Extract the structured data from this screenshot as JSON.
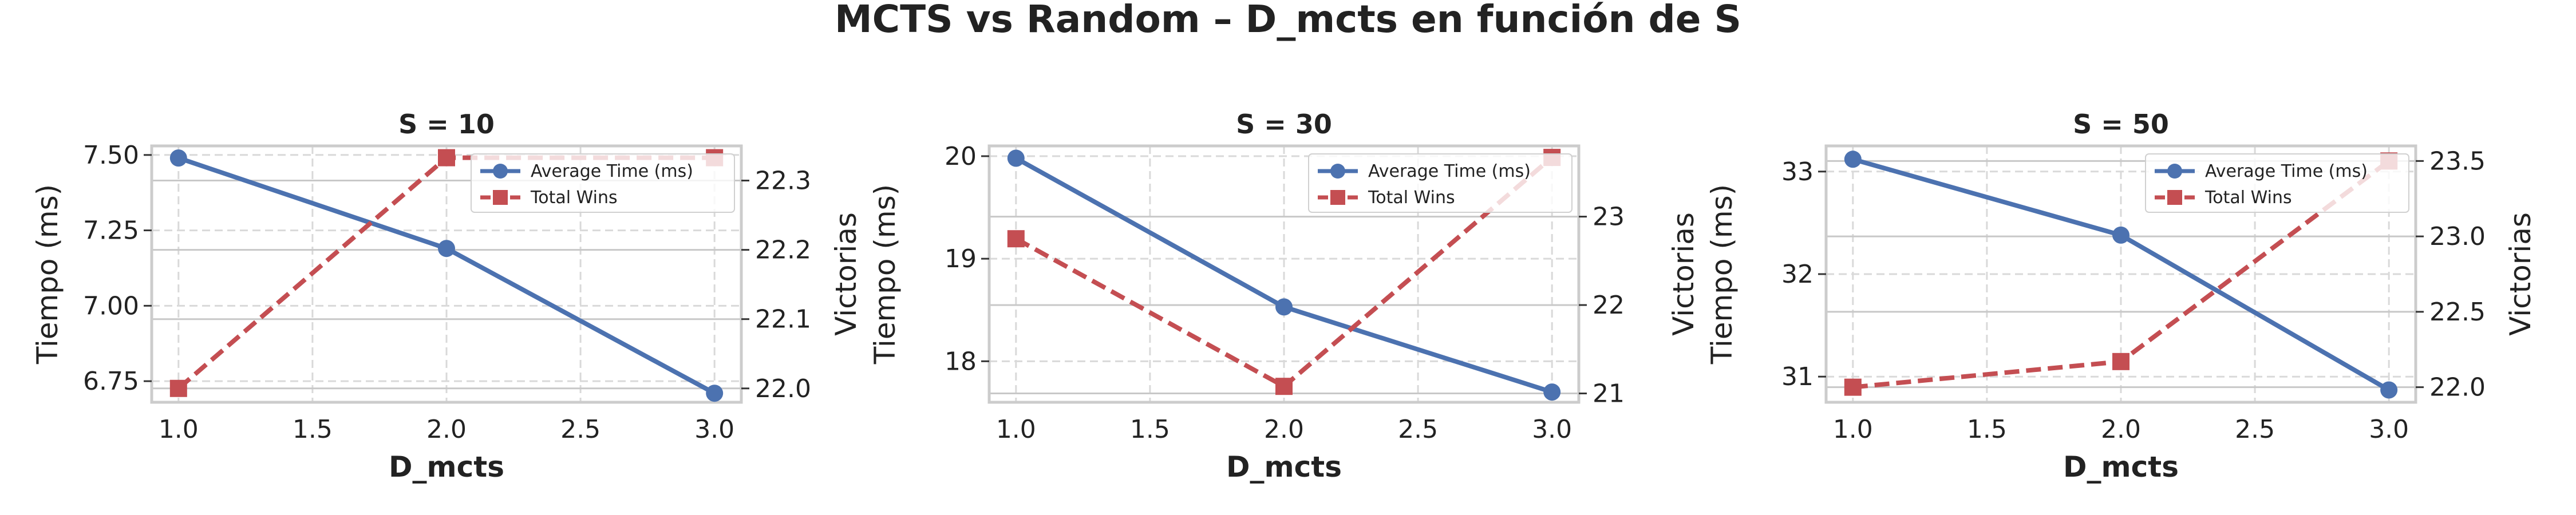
{
  "title": "MCTS vs Random – D_mcts en función de S",
  "chart_data": [
    {
      "type": "line",
      "title": "S = 10",
      "xlabel": "D_mcts",
      "ylabel": "Tiempo (ms)",
      "y2label": "Victorias",
      "x": [
        1.0,
        2.0,
        3.0
      ],
      "xlim": [
        0.9,
        3.1
      ],
      "xticks": [
        1.0,
        1.5,
        2.0,
        2.5,
        3.0
      ],
      "ylim": [
        6.68,
        7.53
      ],
      "yticks": [
        6.75,
        7.0,
        7.25,
        7.5
      ],
      "y2lim": [
        21.98,
        22.35
      ],
      "y2ticks": [
        22.0,
        22.1,
        22.2,
        22.3
      ],
      "series": [
        {
          "name": "Average Time (ms)",
          "axis": "left",
          "values": [
            7.49,
            7.19,
            6.71
          ],
          "color": "#4c72b0",
          "marker": "circle",
          "linestyle": "solid"
        },
        {
          "name": "Total Wins",
          "axis": "right",
          "values": [
            22.0,
            22.333,
            22.333
          ],
          "color": "#c44e52",
          "marker": "square",
          "linestyle": "dashed"
        }
      ],
      "legend": "top-right",
      "grid": true
    },
    {
      "type": "line",
      "title": "S = 30",
      "xlabel": "D_mcts",
      "ylabel": "Tiempo (ms)",
      "y2label": "Victorias",
      "x": [
        1.0,
        2.0,
        3.0
      ],
      "xlim": [
        0.9,
        3.1
      ],
      "xticks": [
        1.0,
        1.5,
        2.0,
        2.5,
        3.0
      ],
      "ylim": [
        17.6,
        20.1
      ],
      "yticks": [
        18,
        19,
        20
      ],
      "y2lim": [
        20.9,
        23.8
      ],
      "y2ticks": [
        21,
        22,
        23
      ],
      "series": [
        {
          "name": "Average Time (ms)",
          "axis": "left",
          "values": [
            19.98,
            18.53,
            17.7
          ],
          "color": "#4c72b0",
          "marker": "circle",
          "linestyle": "solid"
        },
        {
          "name": "Total Wins",
          "axis": "right",
          "values": [
            22.75,
            21.08,
            23.67
          ],
          "color": "#c44e52",
          "marker": "square",
          "linestyle": "dashed"
        }
      ],
      "legend": "top-right",
      "grid": true
    },
    {
      "type": "line",
      "title": "S = 50",
      "xlabel": "D_mcts",
      "ylabel": "Tiempo (ms)",
      "y2label": "Victorias",
      "x": [
        1.0,
        2.0,
        3.0
      ],
      "xlim": [
        0.9,
        3.1
      ],
      "xticks": [
        1.0,
        1.5,
        2.0,
        2.5,
        3.0
      ],
      "ylim": [
        30.75,
        33.25
      ],
      "yticks": [
        31,
        32,
        33
      ],
      "y2lim": [
        21.9,
        23.6
      ],
      "y2ticks": [
        22.0,
        22.5,
        23.0,
        23.5
      ],
      "series": [
        {
          "name": "Average Time (ms)",
          "axis": "left",
          "values": [
            33.12,
            32.38,
            30.87
          ],
          "color": "#4c72b0",
          "marker": "circle",
          "linestyle": "solid"
        },
        {
          "name": "Total Wins",
          "axis": "right",
          "values": [
            22.0,
            22.17,
            23.5
          ],
          "color": "#c44e52",
          "marker": "square",
          "linestyle": "dashed"
        }
      ],
      "legend": "top-right",
      "grid": true
    }
  ]
}
